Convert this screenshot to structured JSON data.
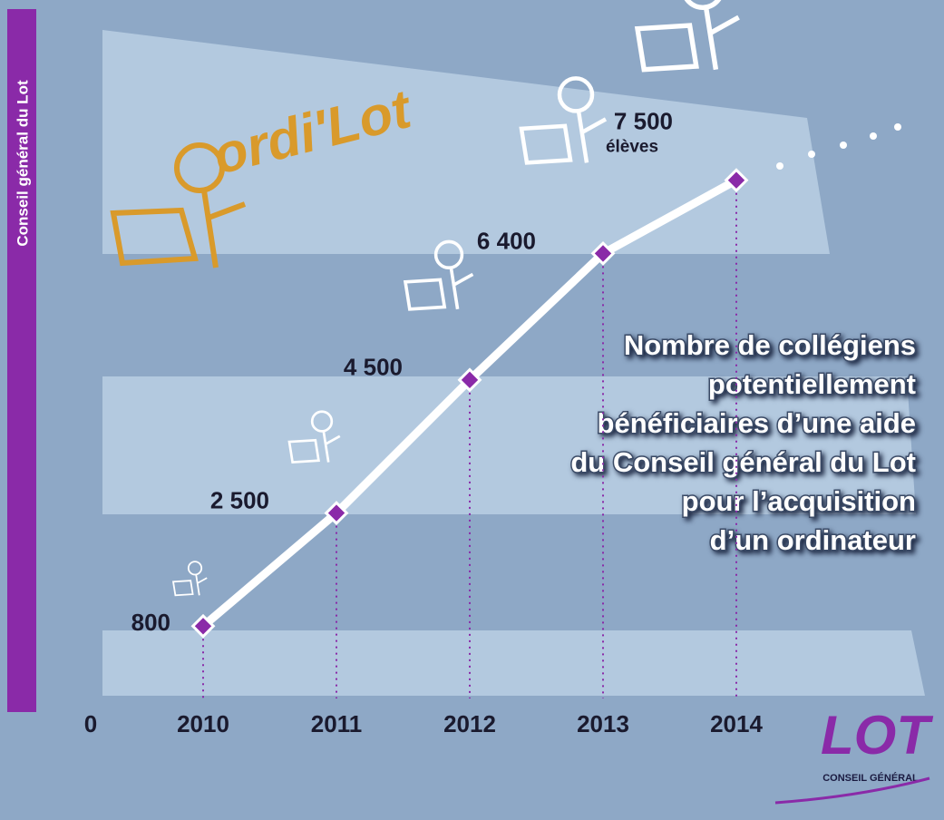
{
  "chart_data": {
    "type": "line",
    "title": [
      "Nombre de collégiens",
      "potentiellement",
      "bénéficiaires d’une aide",
      "du Conseil général du Lot",
      "pour l’acquisition",
      "d’un ordinateur"
    ],
    "categories": [
      "2010",
      "2011",
      "2012",
      "2013",
      "2014"
    ],
    "values": [
      800,
      2500,
      4500,
      6400,
      7500
    ],
    "value_labels": [
      "800",
      "2 500",
      "4 500",
      "6 400",
      "7 500"
    ],
    "unit_label": "élèves",
    "color": "#ffffff",
    "marker_color": "#8a2aa8",
    "ylim": [
      0,
      8000
    ],
    "yticks": [
      0
    ],
    "side_label": "Conseil général du Lot",
    "brand": "ordi'Lot",
    "logo": {
      "name": "LOT",
      "subtitle": "CONSEIL GÉNÉRAL"
    }
  }
}
